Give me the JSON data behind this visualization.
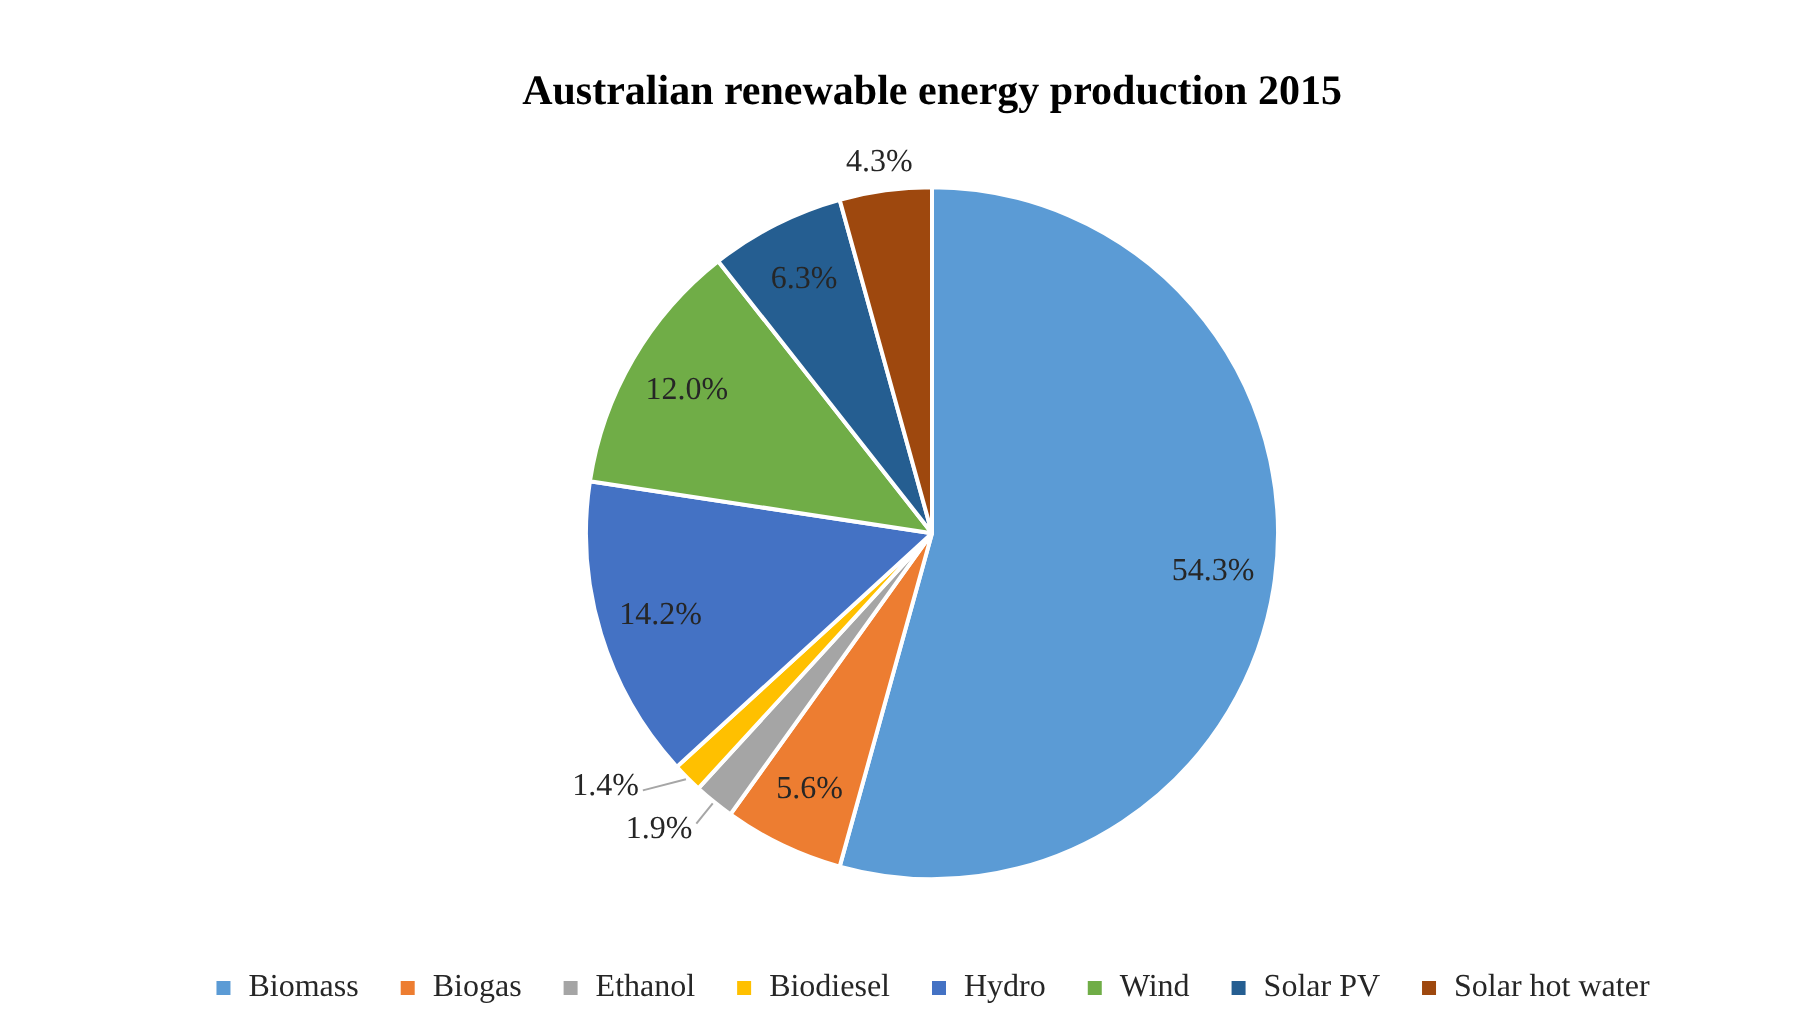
{
  "chart_data": {
    "type": "pie",
    "title": "Australian renewable energy production 2015",
    "categories": [
      "Biomass",
      "Biogas",
      "Ethanol",
      "Biodiesel",
      "Hydro",
      "Wind",
      "Solar PV",
      "Solar hot water"
    ],
    "values": [
      54.3,
      5.6,
      1.9,
      1.4,
      14.2,
      12.0,
      6.3,
      4.3
    ],
    "colors": [
      "#5b9bd5",
      "#ed7d31",
      "#a5a5a5",
      "#ffc000",
      "#4472c4",
      "#70ad47",
      "#255e91",
      "#9e480e"
    ],
    "value_labels": [
      "54.3%",
      "5.6%",
      "1.9%",
      "1.4%",
      "14.2%",
      "12.0%",
      "6.3%",
      "4.3%"
    ],
    "legend": "bottom"
  }
}
